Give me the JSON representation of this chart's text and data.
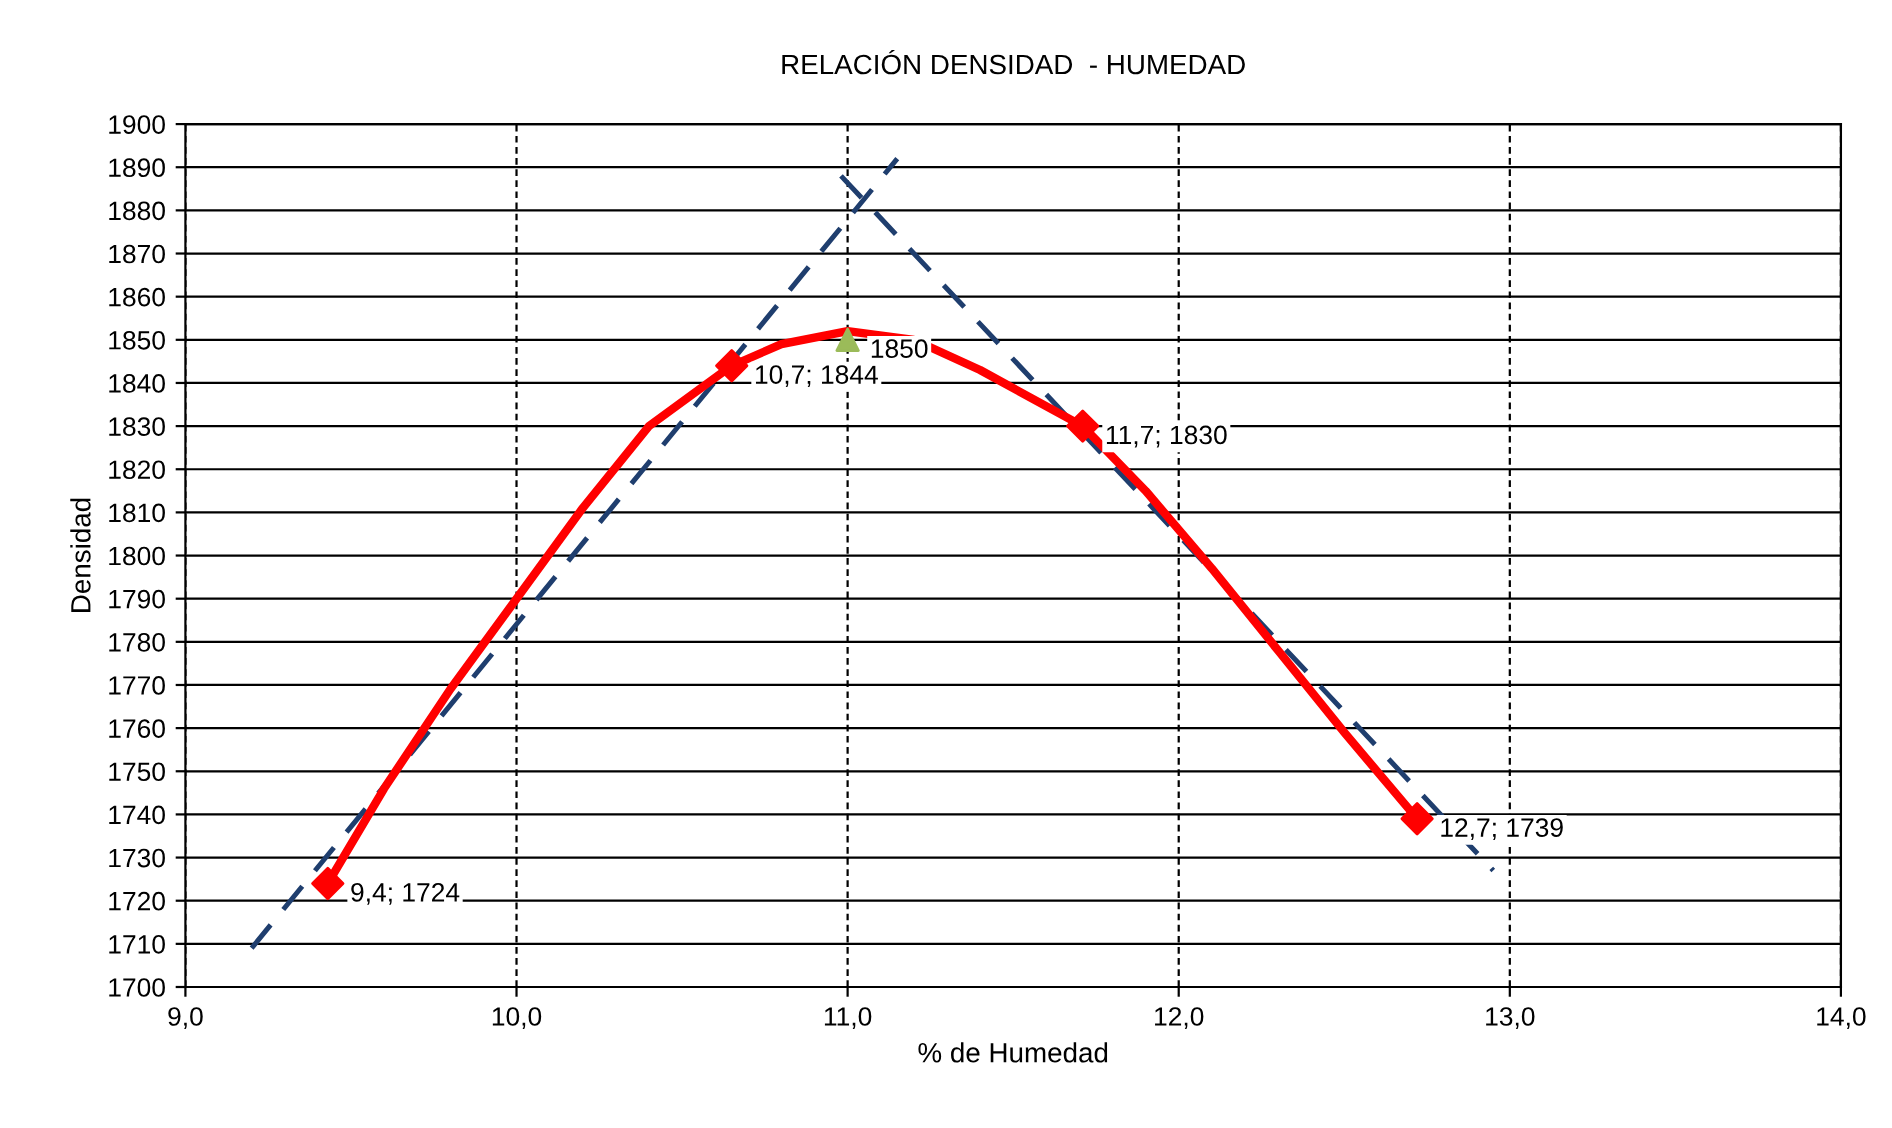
{
  "chart_data": {
    "type": "line",
    "title": "RELACIÓN DENSIDAD  - HUMEDAD",
    "xlabel": "% de Humedad",
    "ylabel": "Densidad",
    "xlim": [
      9.0,
      14.0
    ],
    "xticks": [
      {
        "value": 9.0,
        "label": "9,0"
      },
      {
        "value": 10.0,
        "label": "10,0"
      },
      {
        "value": 11.0,
        "label": "11,0"
      },
      {
        "value": 12.0,
        "label": "12,0"
      },
      {
        "value": 13.0,
        "label": "13,0"
      },
      {
        "value": 14.0,
        "label": "14,0"
      }
    ],
    "ylim": [
      1700,
      1900
    ],
    "yticks": [
      1700,
      1710,
      1720,
      1730,
      1740,
      1750,
      1760,
      1770,
      1780,
      1790,
      1800,
      1810,
      1820,
      1830,
      1840,
      1850,
      1860,
      1870,
      1880,
      1890,
      1900
    ],
    "grid": true,
    "legend": false,
    "series": [
      {
        "color": "#1f3e6e",
        "line_style": "dashed",
        "marker": "none",
        "x": [
          9.2,
          11.15
        ],
        "values": [
          1709,
          1892
        ]
      },
      {
        "color": "#1f3e6e",
        "line_style": "dashed",
        "marker": "none",
        "x": [
          10.98,
          12.95
        ],
        "values": [
          1888,
          1727
        ]
      },
      {
        "color": "#ff0000",
        "line_style": "solid",
        "marker": "none",
        "x": [
          9.43,
          9.6,
          9.8,
          10.0,
          10.2,
          10.4,
          10.65,
          10.8,
          11.0,
          11.2,
          11.4,
          11.71,
          11.9,
          12.1,
          12.3,
          12.5,
          12.72
        ],
        "values": [
          1724,
          1746,
          1769,
          1790,
          1811,
          1830,
          1844,
          1849,
          1852,
          1850,
          1843,
          1830,
          1815,
          1797,
          1778,
          1759,
          1739
        ]
      },
      {
        "type": "scatter",
        "color": "#ff0000",
        "marker": "diamond",
        "x": [
          9.43,
          10.65,
          11.71,
          12.72
        ],
        "values": [
          1724,
          1844,
          1830,
          1739
        ],
        "value_labels": [
          "9,4; 1724",
          "10,7; 1844",
          "11,7; 1830",
          "12,7; 1739"
        ]
      },
      {
        "type": "scatter",
        "color": "#9bbb59",
        "marker": "triangle",
        "x": [
          11.0
        ],
        "values": [
          1850
        ],
        "value_labels": [
          "1850"
        ]
      }
    ]
  }
}
